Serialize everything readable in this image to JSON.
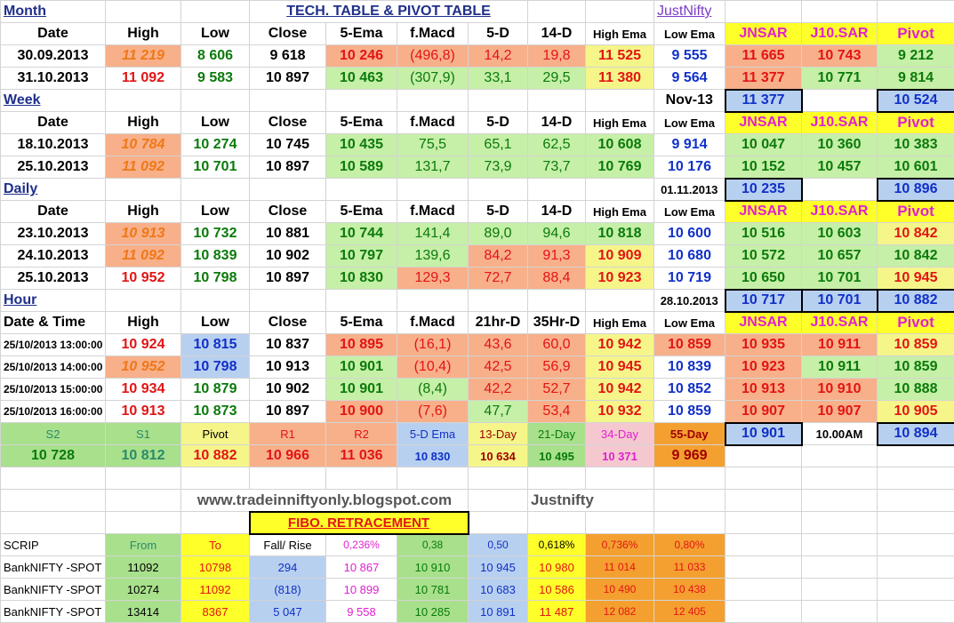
{
  "title_tech": "TECH. TABLE  &  PIVOT TABLE",
  "brand": "JustNifty",
  "month": {
    "label": "Month",
    "headers": [
      "Date",
      "High",
      "Low",
      "Close",
      "5-Ema",
      "f.Macd",
      "5-D",
      "14-D",
      "High Ema",
      "Low Ema",
      "JNSAR",
      "J10.SAR",
      "Pivot"
    ],
    "rows": [
      [
        "30.09.2013",
        "11 219",
        "8 606",
        "9 618",
        "10 246",
        "(496,8)",
        "14,2",
        "19,8",
        "11 525",
        "9 555",
        "11 665",
        "10 743",
        "9 212"
      ],
      [
        "31.10.2013",
        "11 092",
        "9 583",
        "10 897",
        "10 463",
        "(307,9)",
        "33,1",
        "29,5",
        "11 380",
        "9 564",
        "11 377",
        "10 771",
        "9 814"
      ]
    ]
  },
  "week": {
    "label": "Week",
    "summary": {
      "period": "Nov-13",
      "jnsar": "11 377",
      "pivot": "10 524"
    },
    "headers": [
      "Date",
      "High",
      "Low",
      "Close",
      "5-Ema",
      "f.Macd",
      "5-D",
      "14-D",
      "High Ema",
      "Low Ema",
      "JNSAR",
      "J10.SAR",
      "Pivot"
    ],
    "rows": [
      [
        "18.10.2013",
        "10 784",
        "10 274",
        "10 745",
        "10 435",
        "75,5",
        "65,1",
        "62,5",
        "10 608",
        "9 914",
        "10 047",
        "10 360",
        "10 383"
      ],
      [
        "25.10.2013",
        "11 092",
        "10 701",
        "10 897",
        "10 589",
        "131,7",
        "73,9",
        "73,7",
        "10 769",
        "10 176",
        "10 152",
        "10 457",
        "10 601"
      ]
    ]
  },
  "daily": {
    "label": "Daily",
    "summary": {
      "period": "01.11.2013",
      "jnsar": "10 235",
      "pivot": "10 896"
    },
    "headers": [
      "Date",
      "High",
      "Low",
      "Close",
      "5-Ema",
      "f.Macd",
      "5-D",
      "14-D",
      "High Ema",
      "Low Ema",
      "JNSAR",
      "J10.SAR",
      "Pivot"
    ],
    "rows": [
      [
        "23.10.2013",
        "10 913",
        "10 732",
        "10 881",
        "10 744",
        "141,4",
        "89,0",
        "94,6",
        "10 818",
        "10 600",
        "10 516",
        "10 603",
        "10 842"
      ],
      [
        "24.10.2013",
        "11 092",
        "10 839",
        "10 902",
        "10 797",
        "139,6",
        "84,2",
        "91,3",
        "10 909",
        "10 680",
        "10 572",
        "10 657",
        "10 842"
      ],
      [
        "25.10.2013",
        "10 952",
        "10 798",
        "10 897",
        "10 830",
        "129,3",
        "72,7",
        "88,4",
        "10 923",
        "10 719",
        "10 650",
        "10 701",
        "10 945"
      ]
    ]
  },
  "hour": {
    "label": "Hour",
    "summary": {
      "period": "28.10.2013",
      "jnsar": "10 717",
      "j10sar": "10 701",
      "pivot": "10 882"
    },
    "headers": [
      "Date & Time",
      "High",
      "Low",
      "Close",
      "5-Ema",
      "f.Macd",
      "21hr-D",
      "35Hr-D",
      "High Ema",
      "Low Ema",
      "JNSAR",
      "J10.SAR",
      "Pivot"
    ],
    "rows": [
      [
        "25/10/2013 13:00:00",
        "10 924",
        "10 815",
        "10 837",
        "10 895",
        "(16,1)",
        "43,6",
        "60,0",
        "10 942",
        "10 859",
        "10 935",
        "10 911",
        "10 859"
      ],
      [
        "25/10/2013 14:00:00",
        "10 952",
        "10 798",
        "10 913",
        "10 901",
        "(10,4)",
        "42,5",
        "56,9",
        "10 945",
        "10 839",
        "10 923",
        "10 911",
        "10 859"
      ],
      [
        "25/10/2013 15:00:00",
        "10 934",
        "10 879",
        "10 902",
        "10 901",
        "(8,4)",
        "42,2",
        "52,7",
        "10 942",
        "10 852",
        "10 913",
        "10 910",
        "10 888"
      ],
      [
        "25/10/2013 16:00:00",
        "10 913",
        "10 873",
        "10 897",
        "10 900",
        "(7,6)",
        "47,7",
        "53,4",
        "10 932",
        "10 859",
        "10 907",
        "10 907",
        "10 905"
      ]
    ]
  },
  "pivots": {
    "headers": [
      "S2",
      "S1",
      "Pivot",
      "R1",
      "R2",
      "5-D Ema",
      "13-Day",
      "21-Day",
      "34-Day",
      "55-Day"
    ],
    "values": [
      "10 728",
      "10 812",
      "10 882",
      "10 966",
      "11 036",
      "10 830",
      "10 634",
      "10 495",
      "10 371",
      "9 969"
    ],
    "extra_value": "10 901",
    "time": "10.00AM",
    "time_value": "10 894"
  },
  "footer": {
    "site": "www.tradeinniftyonly.blogspot.com",
    "brand": "Justnifty",
    "fibo_title": "FIBO. RETRACEMENT"
  },
  "fibo": {
    "headers": [
      "SCRIP",
      "From",
      "To",
      "Fall/ Rise",
      "0,236%",
      "0,38",
      "0,50",
      "0,618%",
      "0,736%",
      "0,80%"
    ],
    "rows": [
      [
        "BankNIFTY -SPOT",
        "11092",
        "10798",
        "294",
        "10 867",
        "10 910",
        "10 945",
        "10 980",
        "11 014",
        "11 033"
      ],
      [
        "BankNIFTY -SPOT",
        "10274",
        "11092",
        "(818)",
        "10 899",
        "10 781",
        "10 683",
        "10 586",
        "10 490",
        "10 438"
      ],
      [
        "BankNIFTY -SPOT",
        "13414",
        "8367",
        "5 047",
        "9 558",
        "10 285",
        "10 891",
        "11 487",
        "12 082",
        "12 405"
      ]
    ]
  }
}
